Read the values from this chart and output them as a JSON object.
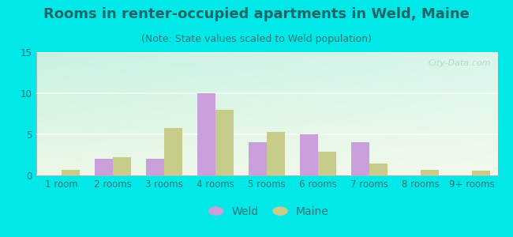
{
  "title": "Rooms in renter-occupied apartments in Weld, Maine",
  "subtitle": "(Note: State values scaled to Weld population)",
  "categories": [
    "1 room",
    "2 rooms",
    "3 rooms",
    "4 rooms",
    "5 rooms",
    "6 rooms",
    "7 rooms",
    "8 rooms",
    "9+ rooms"
  ],
  "weld_values": [
    0,
    2,
    2,
    10,
    4,
    5,
    4,
    0,
    0
  ],
  "maine_values": [
    0.7,
    2.2,
    5.8,
    8.0,
    5.3,
    2.9,
    1.4,
    0.7,
    0.6
  ],
  "weld_color": "#c9a0dc",
  "maine_color": "#c8cc8a",
  "background_color": "#00e8e8",
  "ylim": [
    0,
    15
  ],
  "yticks": [
    0,
    5,
    10,
    15
  ],
  "bar_width": 0.35,
  "title_fontsize": 13,
  "subtitle_fontsize": 9,
  "tick_fontsize": 8.5,
  "legend_fontsize": 10,
  "title_color": "#1a6666",
  "subtitle_color": "#2a7777",
  "tick_color": "#2a7777",
  "watermark": "City-Data.com"
}
